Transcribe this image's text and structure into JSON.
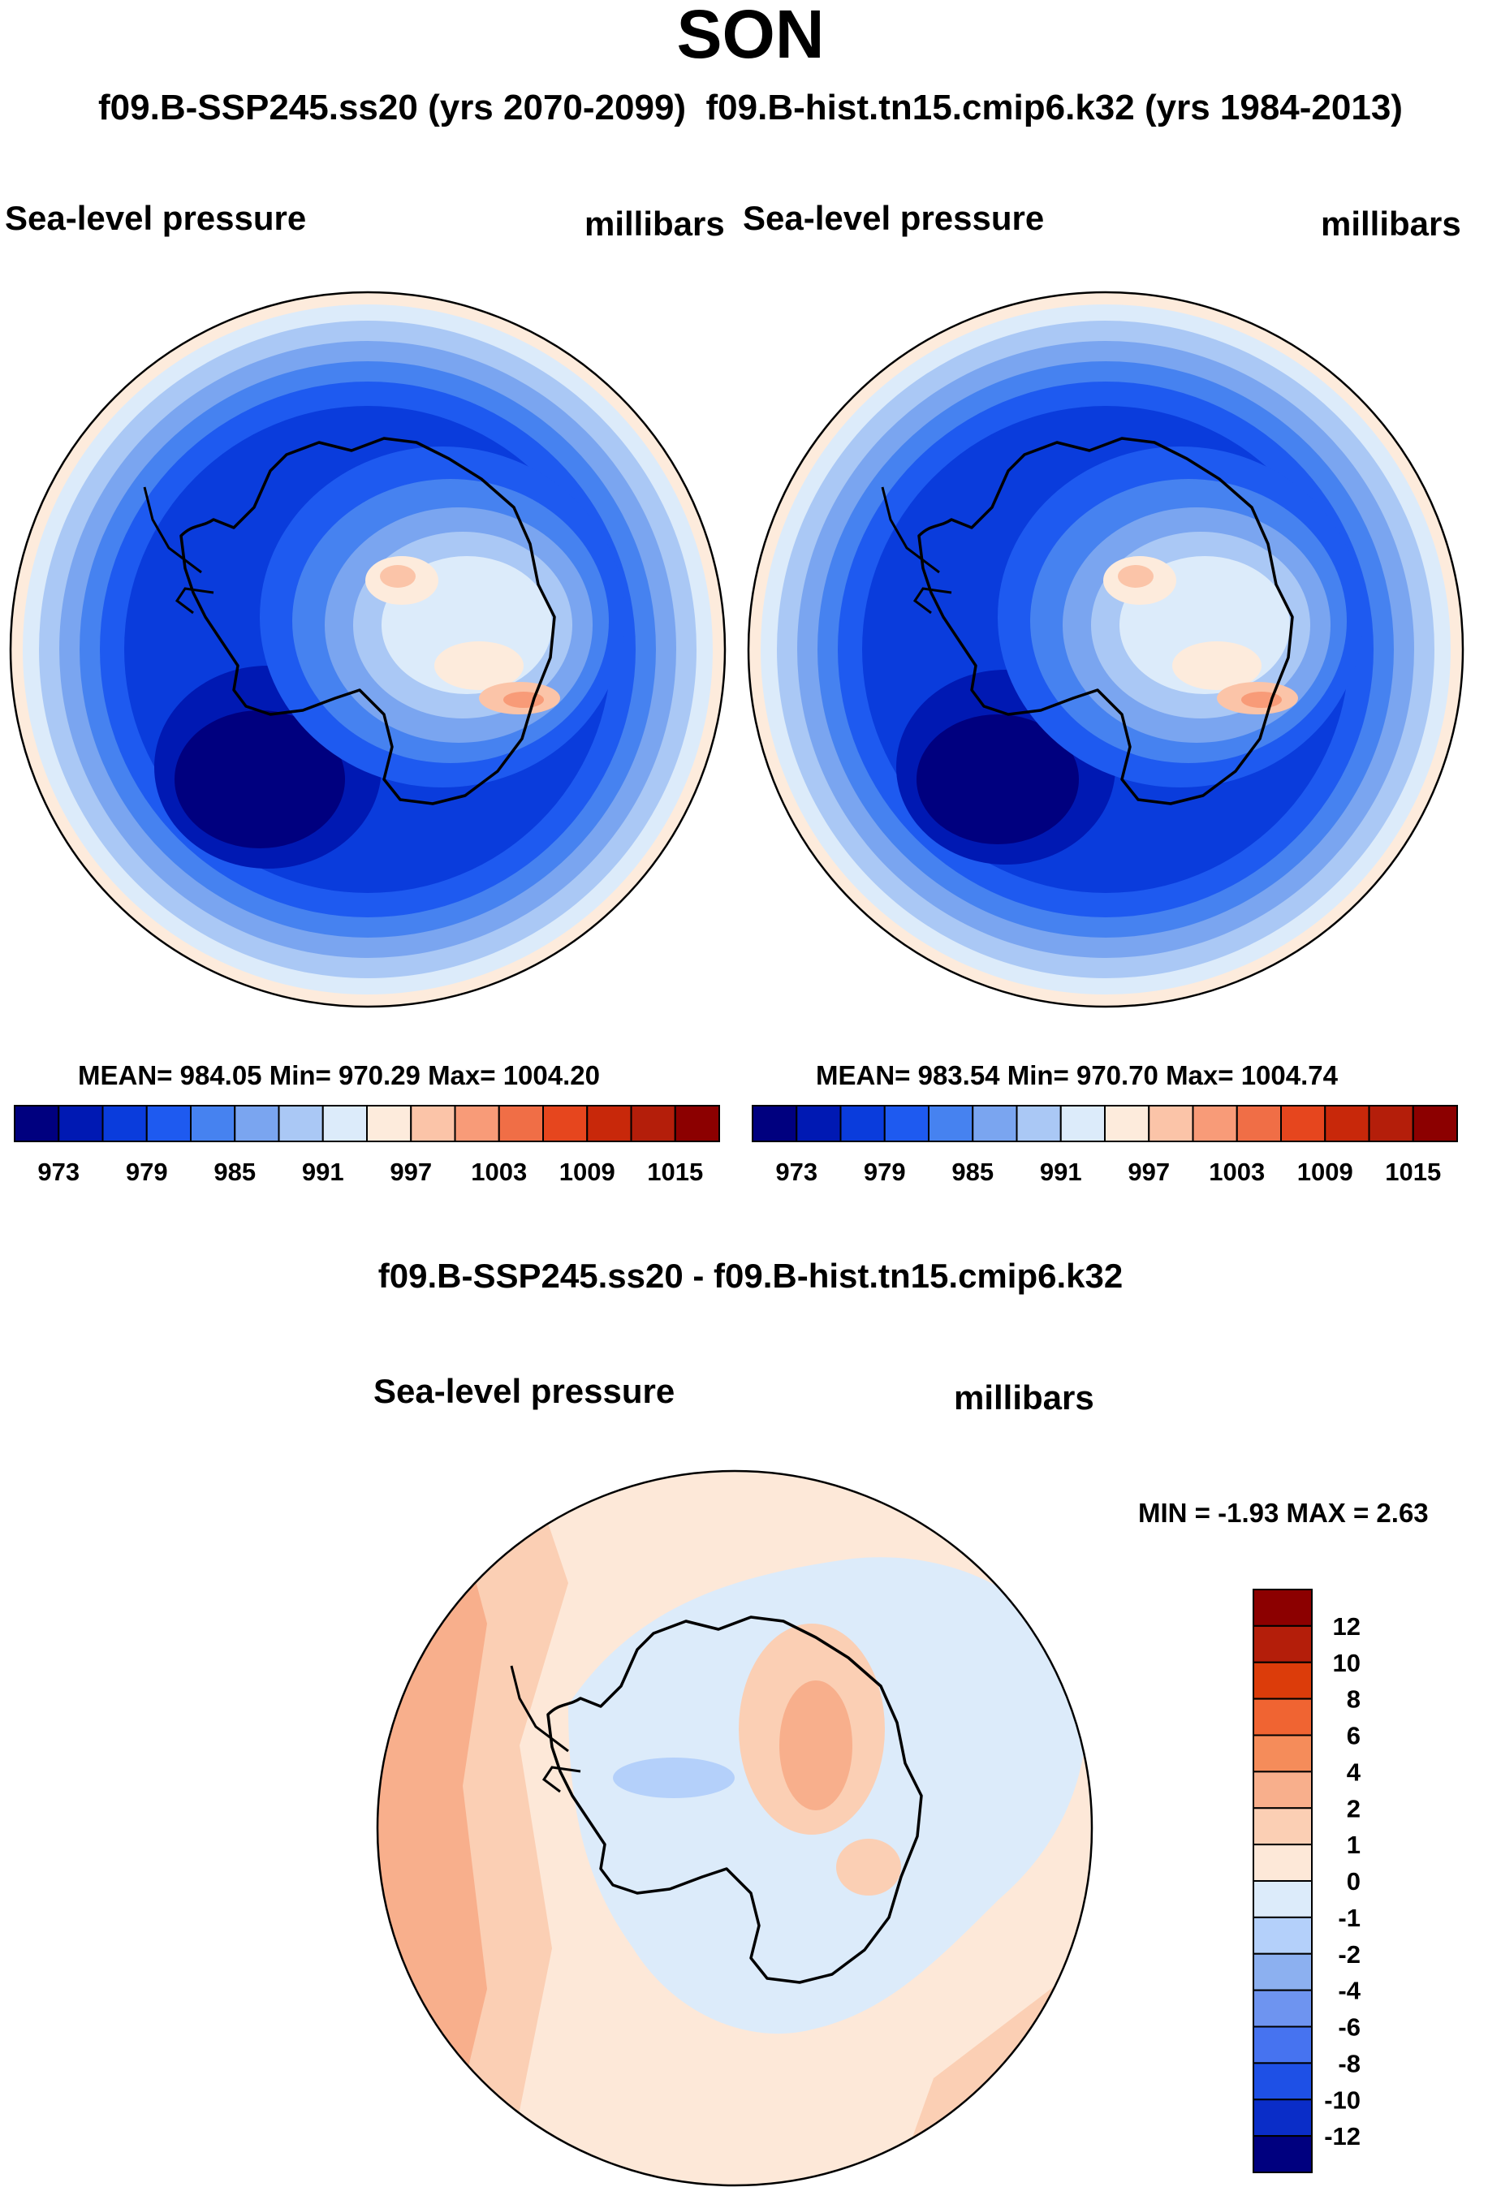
{
  "title": "SON",
  "header": {
    "case_a": "f09.B-SSP245.ss20 (yrs 2070-2099)",
    "case_b": "f09.B-hist.tn15.cmip6.k32 (yrs 1984-2013)"
  },
  "panel_left": {
    "variable": "Sea-level pressure",
    "units": "millibars",
    "stats": "MEAN= 984.05  Min= 970.29  Max= 1004.20"
  },
  "panel_right": {
    "variable": "Sea-level pressure",
    "units": "millibars",
    "stats": "MEAN= 983.54  Min= 970.70  Max= 1004.74"
  },
  "panel_diff": {
    "title": "f09.B-SSP245.ss20 - f09.B-hist.tn15.cmip6.k32",
    "variable": "Sea-level pressure",
    "units": "millibars",
    "minmax": "MIN =  -1.93 MAX =   2.63"
  },
  "colorbar_abs": {
    "labels": [
      "973",
      "979",
      "985",
      "991",
      "997",
      "1003",
      "1009",
      "1015"
    ],
    "colors": [
      "#00007f",
      "#0019b3",
      "#0a3cdc",
      "#1e5af0",
      "#4682f0",
      "#7aa5f0",
      "#aac8f5",
      "#dcebfa",
      "#fdebdc",
      "#fbc4a8",
      "#f89b78",
      "#f06e46",
      "#e6461e",
      "#c8280a",
      "#b41e0a",
      "#8c0000"
    ]
  },
  "colorbar_diff": {
    "labels": [
      "12",
      "10",
      "8",
      "6",
      "4",
      "2",
      "1",
      "0",
      "-1",
      "-2",
      "-4",
      "-6",
      "-8",
      "-10",
      "-12"
    ],
    "colors": [
      "#8c0000",
      "#b41e0a",
      "#dc3c0a",
      "#f06432",
      "#f58c5a",
      "#f8af8c",
      "#fbcfb4",
      "#fde8d8",
      "#dcebfa",
      "#b4d0fa",
      "#8cb0f0",
      "#6e94f0",
      "#4673f0",
      "#1e50e6",
      "#0a2dc8",
      "#00007f"
    ]
  }
}
